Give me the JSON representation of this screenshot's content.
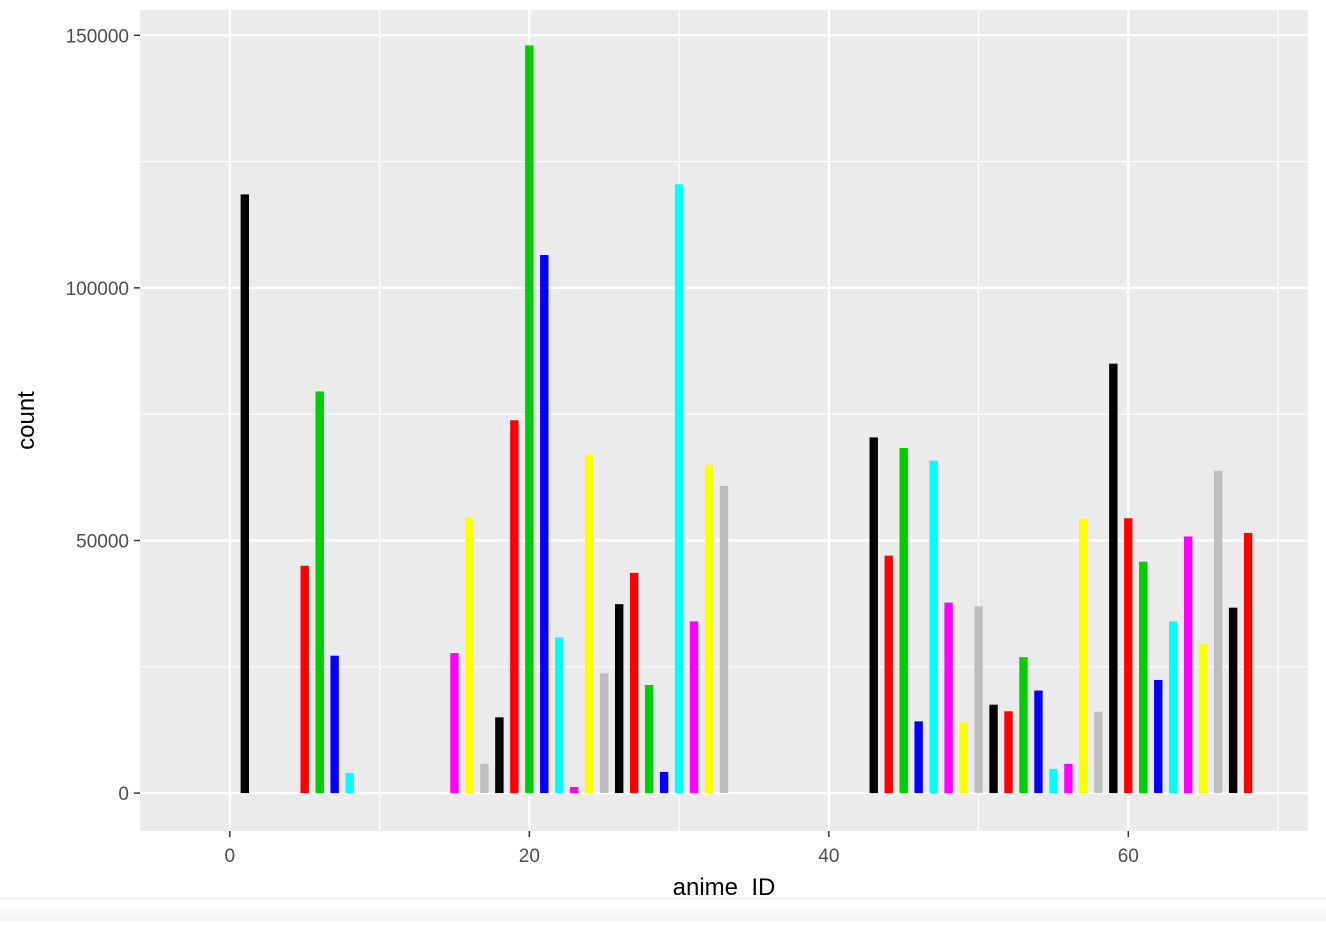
{
  "chart_data": {
    "type": "bar",
    "title": "",
    "xlabel": "anime_ID",
    "ylabel": "count",
    "xlim": [
      -6,
      72
    ],
    "ylim": [
      -7500,
      155000
    ],
    "x_ticks": [
      {
        "value": 0,
        "label": "0"
      },
      {
        "value": 20,
        "label": "20"
      },
      {
        "value": 40,
        "label": "40"
      },
      {
        "value": 60,
        "label": "60"
      }
    ],
    "x_minor_breaks": [
      10,
      30,
      50,
      70
    ],
    "y_ticks": [
      {
        "value": 0,
        "label": "0"
      },
      {
        "value": 50000,
        "label": "50000"
      },
      {
        "value": 100000,
        "label": "100000"
      },
      {
        "value": 150000,
        "label": "150000"
      }
    ],
    "y_minor_breaks": [
      25000,
      75000,
      125000
    ],
    "grid": true,
    "legend": "none",
    "background": "#EBEBEB",
    "grid_color": "#FFFFFF",
    "bars": [
      {
        "x": 1,
        "value": 118500,
        "color": "#000000"
      },
      {
        "x": 5,
        "value": 45000,
        "color": "#FF0000"
      },
      {
        "x": 6,
        "value": 79500,
        "color": "#00CD00"
      },
      {
        "x": 7,
        "value": 27200,
        "color": "#0000FF"
      },
      {
        "x": 8,
        "value": 4000,
        "color": "#00FFFF"
      },
      {
        "x": 15,
        "value": 27700,
        "color": "#FF00FF"
      },
      {
        "x": 16,
        "value": 54500,
        "color": "#FFFF00"
      },
      {
        "x": 17,
        "value": 5800,
        "color": "#BEBEBE"
      },
      {
        "x": 18,
        "value": 15000,
        "color": "#000000"
      },
      {
        "x": 19,
        "value": 73800,
        "color": "#FF0000"
      },
      {
        "x": 20,
        "value": 148000,
        "color": "#00CD00"
      },
      {
        "x": 21,
        "value": 106500,
        "color": "#0000FF"
      },
      {
        "x": 22,
        "value": 30800,
        "color": "#00FFFF"
      },
      {
        "x": 23,
        "value": 1200,
        "color": "#FF00FF"
      },
      {
        "x": 24,
        "value": 67000,
        "color": "#FFFF00"
      },
      {
        "x": 25,
        "value": 23700,
        "color": "#BEBEBE"
      },
      {
        "x": 26,
        "value": 37400,
        "color": "#000000"
      },
      {
        "x": 27,
        "value": 43600,
        "color": "#FF0000"
      },
      {
        "x": 28,
        "value": 21400,
        "color": "#00CD00"
      },
      {
        "x": 29,
        "value": 4200,
        "color": "#0000FF"
      },
      {
        "x": 30,
        "value": 120500,
        "color": "#00FFFF"
      },
      {
        "x": 31,
        "value": 34000,
        "color": "#FF00FF"
      },
      {
        "x": 32,
        "value": 65000,
        "color": "#FFFF00"
      },
      {
        "x": 33,
        "value": 60800,
        "color": "#BEBEBE"
      },
      {
        "x": 43,
        "value": 70400,
        "color": "#000000"
      },
      {
        "x": 44,
        "value": 47000,
        "color": "#FF0000"
      },
      {
        "x": 45,
        "value": 68300,
        "color": "#00CD00"
      },
      {
        "x": 46,
        "value": 14200,
        "color": "#0000FF"
      },
      {
        "x": 47,
        "value": 65800,
        "color": "#00FFFF"
      },
      {
        "x": 48,
        "value": 37700,
        "color": "#FF00FF"
      },
      {
        "x": 49,
        "value": 14000,
        "color": "#FFFF00"
      },
      {
        "x": 50,
        "value": 37000,
        "color": "#BEBEBE"
      },
      {
        "x": 51,
        "value": 17500,
        "color": "#000000"
      },
      {
        "x": 52,
        "value": 16200,
        "color": "#FF0000"
      },
      {
        "x": 53,
        "value": 26900,
        "color": "#00CD00"
      },
      {
        "x": 54,
        "value": 20300,
        "color": "#0000FF"
      },
      {
        "x": 55,
        "value": 4800,
        "color": "#00FFFF"
      },
      {
        "x": 56,
        "value": 5800,
        "color": "#FF00FF"
      },
      {
        "x": 57,
        "value": 54300,
        "color": "#FFFF00"
      },
      {
        "x": 58,
        "value": 16100,
        "color": "#BEBEBE"
      },
      {
        "x": 59,
        "value": 85000,
        "color": "#000000"
      },
      {
        "x": 60,
        "value": 54400,
        "color": "#FF0000"
      },
      {
        "x": 61,
        "value": 45800,
        "color": "#00CD00"
      },
      {
        "x": 62,
        "value": 22400,
        "color": "#0000FF"
      },
      {
        "x": 63,
        "value": 34000,
        "color": "#00FFFF"
      },
      {
        "x": 64,
        "value": 50800,
        "color": "#FF00FF"
      },
      {
        "x": 65,
        "value": 29500,
        "color": "#FFFF00"
      },
      {
        "x": 66,
        "value": 63800,
        "color": "#BEBEBE"
      },
      {
        "x": 67,
        "value": 36700,
        "color": "#000000"
      },
      {
        "x": 68,
        "value": 51500,
        "color": "#FF0000"
      }
    ]
  }
}
